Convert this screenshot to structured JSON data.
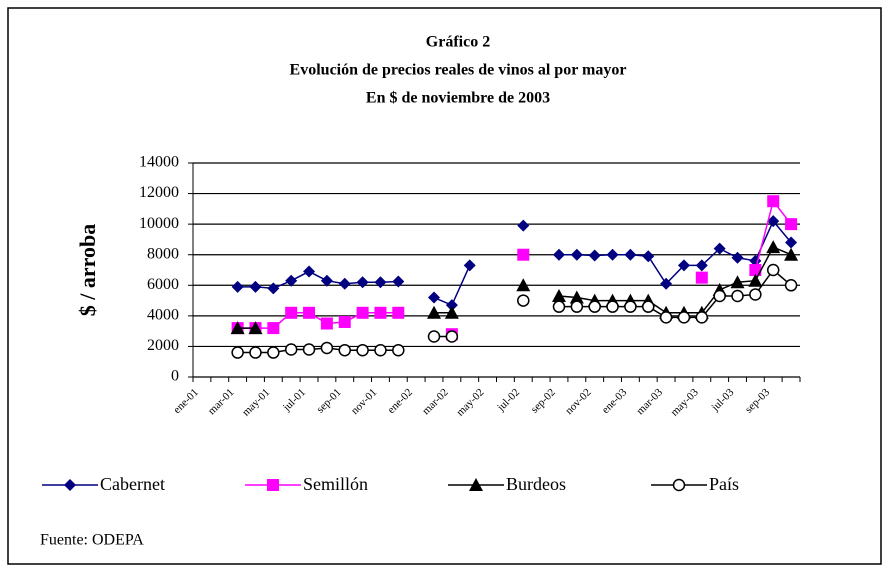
{
  "chart_data": {
    "type": "line",
    "title": [
      "Gráfico 2",
      "Evolución de precios reales de vinos al por mayor",
      "En $ de noviembre de 2003"
    ],
    "y_label": "$ / arroba",
    "source": "Fuente: ODEPA",
    "categories": [
      "ene-01",
      null,
      "mar-01",
      null,
      "may-01",
      null,
      "jul-01",
      null,
      "sep-01",
      null,
      "nov-01",
      null,
      "ene-02",
      null,
      "mar-02",
      null,
      "may-02",
      null,
      "jul-02",
      null,
      "sep-02",
      null,
      "nov-02",
      null,
      "ene-03",
      null,
      "mar-03",
      null,
      "may-03",
      null,
      "jul-03",
      null,
      "sep-03",
      null
    ],
    "ylim": [
      0,
      14000
    ],
    "yticks": [
      0,
      2000,
      4000,
      6000,
      8000,
      10000,
      12000,
      14000
    ],
    "grid": true,
    "series": [
      {
        "name": "Cabernet",
        "color": "#000080",
        "marker": "diamond",
        "values": [
          null,
          null,
          5900,
          5900,
          5800,
          6300,
          6900,
          6300,
          6100,
          6200,
          6200,
          6250,
          null,
          5200,
          4700,
          7300,
          null,
          null,
          9900,
          null,
          8000,
          8000,
          7950,
          8000,
          8000,
          7900,
          6100,
          7300,
          7300,
          8400,
          7800,
          7600,
          10200,
          8800
        ]
      },
      {
        "name": "Semillón",
        "color": "#ff00ff",
        "marker": "square",
        "values": [
          null,
          null,
          3200,
          3200,
          3200,
          4200,
          4200,
          3500,
          3600,
          4200,
          4200,
          4200,
          null,
          null,
          2800,
          null,
          null,
          null,
          8000,
          null,
          null,
          null,
          null,
          null,
          null,
          null,
          null,
          null,
          6500,
          null,
          null,
          7000,
          11500,
          10000
        ]
      },
      {
        "name": "Burdeos",
        "color": "#000000",
        "marker": "triangle",
        "values": [
          null,
          null,
          3200,
          3200,
          null,
          null,
          null,
          null,
          null,
          null,
          null,
          null,
          null,
          4200,
          4200,
          null,
          null,
          null,
          6000,
          null,
          5300,
          5200,
          5000,
          5000,
          5000,
          5000,
          4200,
          4200,
          4200,
          5700,
          6200,
          6300,
          8500,
          8000
        ]
      },
      {
        "name": "País",
        "color": "#000000",
        "marker": "circle",
        "values": [
          null,
          null,
          1600,
          1600,
          1600,
          1800,
          1800,
          1900,
          1750,
          1750,
          1750,
          1750,
          null,
          2650,
          2650,
          null,
          null,
          null,
          5000,
          null,
          4600,
          4600,
          4600,
          4600,
          4600,
          4600,
          3900,
          3900,
          3900,
          5300,
          5300,
          5400,
          7000,
          6000
        ]
      }
    ]
  }
}
